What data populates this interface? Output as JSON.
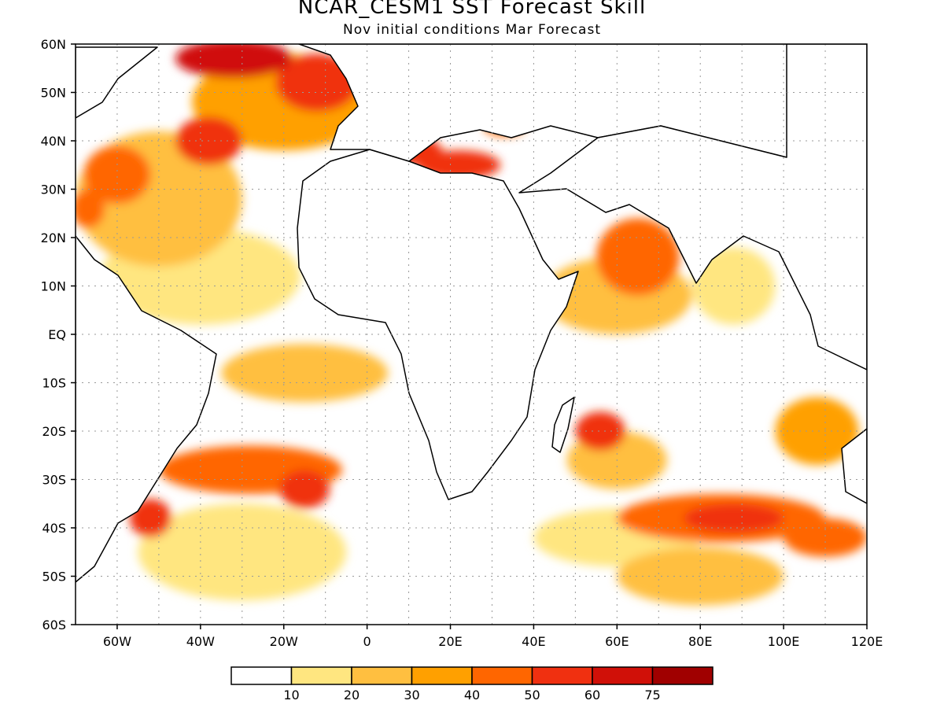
{
  "title": "NCAR_CESM1  SST Forecast Skill",
  "subtitle": "Nov initial conditions   Mar Forecast",
  "lat_labels": [
    "60N",
    "50N",
    "40N",
    "30N",
    "20N",
    "10N",
    "EQ",
    "10S",
    "20S",
    "30S",
    "40S",
    "50S",
    "60S"
  ],
  "lon_labels": [
    "60W",
    "40W",
    "20W",
    "0",
    "20E",
    "40E",
    "60E",
    "80E",
    "100E",
    "120E"
  ],
  "extent": {
    "lon_min": -70,
    "lon_max": 120,
    "lat_min": -60,
    "lat_max": 60
  },
  "colorbar": {
    "colors": [
      "#ffffff",
      "#ffe680",
      "#ffbf40",
      "#ffa000",
      "#ff6600",
      "#f03010",
      "#d01008",
      "#a00000"
    ],
    "labels": [
      "10",
      "20",
      "30",
      "40",
      "50",
      "60",
      "75"
    ]
  },
  "chart_data": {
    "type": "heatmap",
    "title": "NCAR_CESM1  SST Forecast Skill",
    "subtitle": "Nov initial conditions   Mar Forecast",
    "xlim": [
      -70,
      120
    ],
    "ylim": [
      -60,
      60
    ],
    "levels": [
      10,
      20,
      30,
      40,
      50,
      60,
      75
    ],
    "skill_regions": [
      {
        "lon": -32,
        "lat": 57,
        "r_lon": 14,
        "r_lat": 4,
        "level": 6
      },
      {
        "lon": -12,
        "lat": 52,
        "r_lon": 10,
        "r_lat": 6,
        "level": 5
      },
      {
        "lon": -20,
        "lat": 48,
        "r_lon": 22,
        "r_lat": 10,
        "level": 3
      },
      {
        "lon": -38,
        "lat": 40,
        "r_lon": 8,
        "r_lat": 5,
        "level": 5
      },
      {
        "lon": -60,
        "lat": 33,
        "r_lon": 8,
        "r_lat": 6,
        "level": 4
      },
      {
        "lon": -67,
        "lat": 26,
        "r_lon": 4,
        "r_lat": 4,
        "level": 4
      },
      {
        "lon": -50,
        "lat": 28,
        "r_lon": 20,
        "r_lat": 14,
        "level": 2
      },
      {
        "lon": -40,
        "lat": 12,
        "r_lon": 24,
        "r_lat": 10,
        "level": 1
      },
      {
        "lon": 10,
        "lat": 38,
        "r_lon": 8,
        "r_lat": 3,
        "level": 5
      },
      {
        "lon": 22,
        "lat": 35,
        "r_lon": 10,
        "r_lat": 3,
        "level": 5
      },
      {
        "lon": 33,
        "lat": 43,
        "r_lon": 5,
        "r_lat": 2,
        "level": 4
      },
      {
        "lon": 65,
        "lat": 16,
        "r_lon": 10,
        "r_lat": 8,
        "level": 4
      },
      {
        "lon": 60,
        "lat": 8,
        "r_lon": 18,
        "r_lat": 8,
        "level": 2
      },
      {
        "lon": 88,
        "lat": 10,
        "r_lon": 10,
        "r_lat": 8,
        "level": 1
      },
      {
        "lon": -15,
        "lat": -8,
        "r_lon": 20,
        "r_lat": 6,
        "level": 2
      },
      {
        "lon": -28,
        "lat": -28,
        "r_lon": 22,
        "r_lat": 5,
        "level": 4
      },
      {
        "lon": -15,
        "lat": -32,
        "r_lon": 6,
        "r_lat": 4,
        "level": 5
      },
      {
        "lon": -52,
        "lat": -38,
        "r_lon": 5,
        "r_lat": 4,
        "level": 5
      },
      {
        "lon": -30,
        "lat": -45,
        "r_lon": 25,
        "r_lat": 10,
        "level": 1
      },
      {
        "lon": 56,
        "lat": -20,
        "r_lon": 6,
        "r_lat": 4,
        "level": 5
      },
      {
        "lon": 60,
        "lat": -26,
        "r_lon": 12,
        "r_lat": 6,
        "level": 2
      },
      {
        "lon": 85,
        "lat": -38,
        "r_lon": 25,
        "r_lat": 5,
        "level": 4
      },
      {
        "lon": 88,
        "lat": -38,
        "r_lon": 12,
        "r_lat": 3,
        "level": 5
      },
      {
        "lon": 110,
        "lat": -42,
        "r_lon": 10,
        "r_lat": 4,
        "level": 4
      },
      {
        "lon": 108,
        "lat": -20,
        "r_lon": 10,
        "r_lat": 7,
        "level": 3
      },
      {
        "lon": 80,
        "lat": -50,
        "r_lon": 20,
        "r_lat": 6,
        "level": 2
      },
      {
        "lon": 60,
        "lat": -42,
        "r_lon": 20,
        "r_lat": 6,
        "level": 1
      }
    ]
  }
}
